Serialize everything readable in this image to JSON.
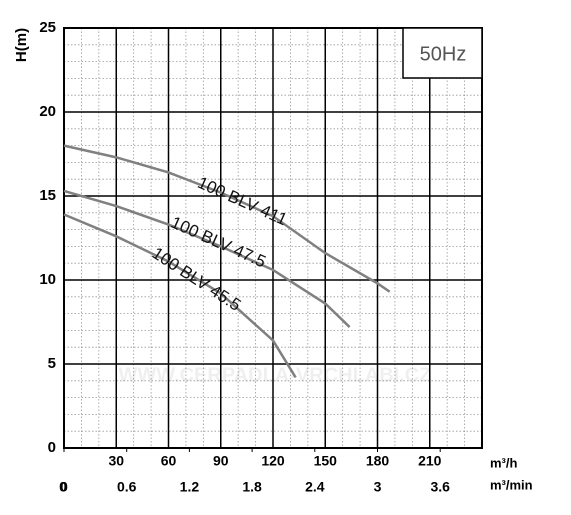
{
  "chart_data": {
    "type": "line",
    "y_label": "H(m)",
    "x_label": "m³/h",
    "x2_label": "m³/min",
    "badge": "50Hz",
    "watermark": "WWW.CERPADLA-VRCHLABI.CZ",
    "xlim": [
      0,
      240
    ],
    "xticks": [
      30,
      60,
      90,
      120,
      150,
      180,
      210
    ],
    "x2lim": [
      0,
      4
    ],
    "x2ticks": [
      0,
      0.6,
      1.2,
      1.8,
      2.4,
      3.0,
      3.6
    ],
    "ylim": [
      0,
      25
    ],
    "yticks": [
      0,
      5,
      10,
      15,
      20,
      25
    ],
    "grid": true,
    "minor_grid_step": {
      "x": 10,
      "y": 1
    },
    "series": [
      {
        "name": "100 BLV 411",
        "color": "#808080",
        "x": [
          0,
          30,
          60,
          90,
          120,
          150,
          180,
          187
        ],
        "values": [
          18.0,
          17.3,
          16.4,
          15.2,
          13.8,
          11.6,
          9.8,
          9.3
        ]
      },
      {
        "name": "100 BLV 47.5",
        "color": "#808080",
        "x": [
          0,
          30,
          60,
          90,
          120,
          150,
          164
        ],
        "values": [
          15.3,
          14.4,
          13.3,
          12.0,
          10.6,
          8.6,
          7.2
        ]
      },
      {
        "name": "100 BLV 45.5",
        "color": "#808080",
        "x": [
          0,
          30,
          60,
          90,
          120,
          133
        ],
        "values": [
          13.9,
          12.6,
          11.1,
          9.2,
          6.4,
          4.2
        ]
      }
    ]
  }
}
